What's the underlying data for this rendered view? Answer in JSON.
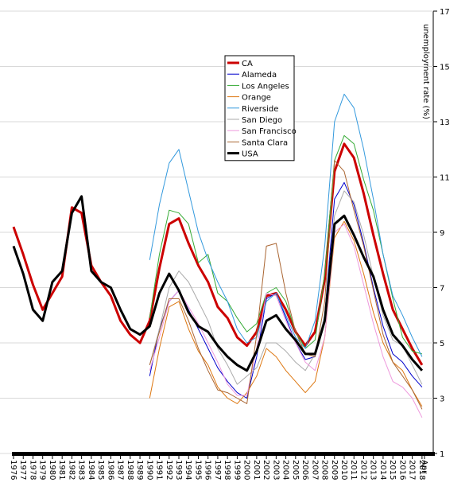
{
  "chart_data": {
    "type": "line",
    "y_label": "unemployment rate (%)",
    "x": [
      1976,
      1977,
      1978,
      1979,
      1980,
      1981,
      1982,
      1983,
      1984,
      1985,
      1986,
      1987,
      1988,
      1989,
      1990,
      1991,
      1992,
      1993,
      1994,
      1995,
      1996,
      1997,
      1998,
      1999,
      2000,
      2001,
      2002,
      2003,
      2004,
      2005,
      2006,
      2007,
      2008,
      2009,
      2010,
      2011,
      2012,
      2013,
      2014,
      2015,
      2016,
      2017,
      2018
    ],
    "series": [
      {
        "name": "CA",
        "color": "#cc0000",
        "width": 3,
        "values": [
          9.2,
          8.2,
          7.1,
          6.2,
          6.8,
          7.4,
          9.9,
          9.7,
          7.8,
          7.2,
          6.7,
          5.8,
          5.3,
          5.0,
          5.8,
          7.7,
          9.3,
          9.5,
          8.6,
          7.8,
          7.2,
          6.3,
          5.9,
          5.2,
          4.9,
          5.4,
          6.7,
          6.8,
          6.2,
          5.4,
          4.9,
          5.4,
          7.3,
          11.2,
          12.2,
          11.7,
          10.4,
          8.9,
          7.5,
          6.2,
          5.5,
          4.8,
          4.2
        ]
      },
      {
        "name": "Alameda",
        "color": "#0000cc",
        "width": 1,
        "values": [
          null,
          null,
          null,
          null,
          null,
          null,
          null,
          null,
          null,
          null,
          null,
          null,
          null,
          null,
          3.8,
          5.5,
          6.5,
          6.9,
          6.2,
          5.5,
          4.8,
          4.1,
          3.6,
          3.2,
          3.0,
          4.5,
          6.6,
          6.8,
          5.9,
          5.0,
          4.4,
          4.5,
          6.0,
          10.2,
          10.8,
          10.0,
          8.6,
          7.0,
          5.6,
          4.6,
          4.3,
          3.8,
          3.4
        ]
      },
      {
        "name": "Los Angeles",
        "color": "#33aa33",
        "width": 1,
        "values": [
          null,
          null,
          null,
          null,
          null,
          null,
          null,
          null,
          null,
          null,
          null,
          null,
          null,
          null,
          5.9,
          8.2,
          9.8,
          9.7,
          9.3,
          7.9,
          8.2,
          6.8,
          6.5,
          5.9,
          5.4,
          5.7,
          6.8,
          7.0,
          6.5,
          5.4,
          4.8,
          5.1,
          7.5,
          11.6,
          12.5,
          12.2,
          10.9,
          9.8,
          8.2,
          6.6,
          5.2,
          4.7,
          4.6
        ]
      },
      {
        "name": "Orange",
        "color": "#dd7711",
        "width": 1,
        "values": [
          null,
          null,
          null,
          null,
          null,
          null,
          null,
          null,
          null,
          null,
          null,
          null,
          null,
          null,
          3.0,
          4.8,
          6.3,
          6.5,
          5.5,
          4.7,
          4.2,
          3.4,
          3.0,
          2.8,
          3.2,
          3.8,
          4.8,
          4.5,
          4.0,
          3.6,
          3.2,
          3.6,
          5.2,
          8.8,
          9.4,
          8.7,
          7.5,
          6.1,
          5.0,
          4.3,
          4.0,
          3.3,
          2.7
        ]
      },
      {
        "name": "Riverside",
        "color": "#3399dd",
        "width": 1,
        "values": [
          null,
          null,
          null,
          null,
          null,
          null,
          null,
          null,
          null,
          null,
          null,
          null,
          null,
          null,
          8.0,
          10.0,
          11.5,
          12.0,
          10.5,
          9.0,
          8.0,
          7.2,
          6.5,
          5.5,
          5.0,
          5.2,
          6.5,
          6.8,
          6.0,
          5.2,
          4.8,
          5.8,
          8.5,
          13.0,
          14.0,
          13.5,
          12.0,
          10.2,
          8.2,
          6.7,
          6.0,
          5.2,
          4.5
        ]
      },
      {
        "name": "San Diego",
        "color": "#aaaaaa",
        "width": 1,
        "values": [
          null,
          null,
          null,
          null,
          null,
          null,
          null,
          null,
          null,
          null,
          null,
          null,
          null,
          null,
          4.2,
          5.5,
          7.0,
          7.6,
          7.2,
          6.5,
          5.8,
          4.8,
          4.2,
          3.5,
          3.8,
          4.1,
          5.0,
          5.0,
          4.7,
          4.3,
          4.0,
          4.6,
          6.0,
          9.6,
          10.5,
          10.1,
          8.9,
          7.4,
          6.0,
          5.1,
          4.9,
          4.2,
          3.5
        ]
      },
      {
        "name": "San Francisco",
        "color": "#ee99dd",
        "width": 1,
        "values": [
          null,
          null,
          null,
          null,
          null,
          null,
          null,
          null,
          null,
          null,
          null,
          null,
          null,
          null,
          4.0,
          5.2,
          6.5,
          6.9,
          6.3,
          5.7,
          5.0,
          4.3,
          3.5,
          3.1,
          3.1,
          4.8,
          6.8,
          6.7,
          5.8,
          5.0,
          4.3,
          4.0,
          5.2,
          9.0,
          9.3,
          8.5,
          7.1,
          5.7,
          4.5,
          3.6,
          3.4,
          3.0,
          2.3
        ]
      },
      {
        "name": "Santa Clara",
        "color": "#aa6633",
        "width": 1,
        "values": [
          null,
          null,
          null,
          null,
          null,
          null,
          null,
          null,
          null,
          null,
          null,
          null,
          null,
          null,
          4.2,
          5.4,
          6.6,
          6.6,
          5.8,
          4.8,
          4.0,
          3.3,
          3.2,
          3.0,
          2.8,
          5.3,
          8.5,
          8.6,
          6.8,
          5.4,
          4.6,
          4.5,
          6.5,
          11.6,
          11.2,
          9.8,
          8.5,
          6.9,
          5.3,
          4.3,
          3.8,
          3.3,
          2.6
        ]
      },
      {
        "name": "USA",
        "color": "#000000",
        "width": 3,
        "values": [
          8.5,
          7.5,
          6.2,
          5.8,
          7.2,
          7.6,
          9.7,
          10.3,
          7.6,
          7.2,
          7.0,
          6.2,
          5.5,
          5.3,
          5.6,
          6.8,
          7.5,
          6.9,
          6.1,
          5.6,
          5.4,
          4.9,
          4.5,
          4.2,
          4.0,
          4.7,
          5.8,
          6.0,
          5.5,
          5.1,
          4.6,
          4.6,
          5.8,
          9.3,
          9.6,
          8.9,
          8.1,
          7.4,
          6.2,
          5.3,
          4.9,
          4.4,
          4.0
        ]
      }
    ],
    "xlim": [
      1976,
      2018.5
    ],
    "xticks": [
      1976,
      1977,
      1978,
      1979,
      1980,
      1981,
      1982,
      1983,
      1984,
      1985,
      1986,
      1987,
      1988,
      1989,
      1990,
      1991,
      1992,
      1993,
      1994,
      1995,
      1996,
      1997,
      1998,
      1999,
      2000,
      2001,
      2002,
      2003,
      2004,
      2005,
      2006,
      2007,
      2008,
      2009,
      2010,
      2011,
      2012,
      2013,
      2014,
      2015,
      2016,
      2017,
      2018,
      {
        "value": 2018.25,
        "label": "Apr"
      }
    ],
    "ylim": [
      1,
      17
    ],
    "yticks": [
      1,
      3,
      5,
      7,
      9,
      11,
      13,
      15,
      17
    ],
    "grid": true,
    "legend": "top"
  }
}
